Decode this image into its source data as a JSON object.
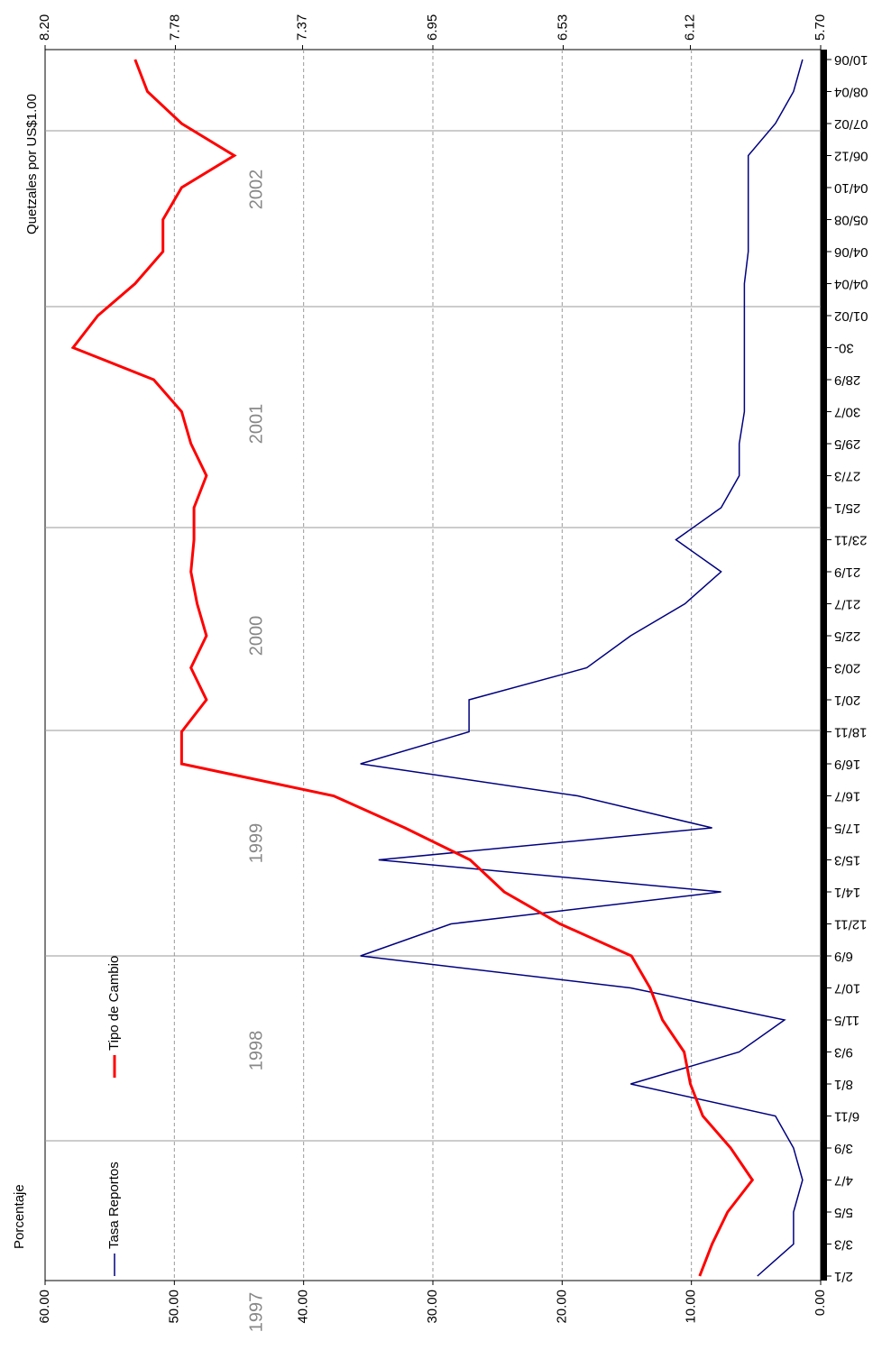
{
  "chart_data": {
    "type": "line",
    "y_label": "Porcentaje",
    "y2_label": "Quetzales por US$1.00",
    "year_labels": [
      "1997",
      "1998",
      "1999",
      "2000",
      "2001",
      "2002"
    ],
    "categories": [
      "2/1",
      "3/3",
      "5/5",
      "4/7",
      "3/9",
      "6/11",
      "8/1",
      "9/3",
      "11/5",
      "10/7",
      "6/9",
      "12/11",
      "14/1",
      "15/3",
      "17/5",
      "16/7",
      "16/9",
      "18/11",
      "20/1",
      "20/3",
      "22/5",
      "21/7",
      "21/9",
      "23/11",
      "25/1",
      "27/3",
      "29/5",
      "30/7",
      "28/9",
      "30-",
      "01/02",
      "04/04",
      "04/06",
      "05/08",
      "04/10",
      "06/12",
      "07/02",
      "08/04",
      "10/06"
    ],
    "series": [
      {
        "name": "Tasa Reportos",
        "color": "#000080",
        "values": [
          4.9,
          2.1,
          2.1,
          1.4,
          2.1,
          3.5,
          14.7,
          6.3,
          2.8,
          14.7,
          35.6,
          28.6,
          7.7,
          34.2,
          8.4,
          18.8,
          35.6,
          27.2,
          27.2,
          18.1,
          14.7,
          10.5,
          7.7,
          11.2,
          7.7,
          6.3,
          6.3,
          5.9,
          5.9,
          5.9,
          5.9,
          5.9,
          5.6,
          5.6,
          5.6,
          5.6,
          3.5,
          2.1,
          1.4
        ]
      },
      {
        "name": "Tipo de Cambio",
        "color": "#ff0000",
        "axis": "y2",
        "values": [
          6.09,
          6.05,
          6.0,
          5.92,
          5.99,
          6.08,
          6.12,
          6.14,
          6.21,
          6.25,
          6.31,
          6.54,
          6.72,
          6.83,
          7.04,
          7.27,
          7.76,
          7.76,
          7.68,
          7.73,
          7.68,
          7.71,
          7.73,
          7.72,
          7.72,
          7.68,
          7.73,
          7.76,
          7.85,
          8.11,
          8.03,
          7.91,
          7.82,
          7.82,
          7.76,
          7.59,
          7.76,
          7.87,
          7.91
        ]
      }
    ],
    "ylim": [
      0,
      60
    ],
    "yticks": [
      {
        "value": 0,
        "label": "0.00"
      },
      {
        "value": 10,
        "label": "10.00"
      },
      {
        "value": 20,
        "label": "20.00"
      },
      {
        "value": 30,
        "label": "30.00"
      },
      {
        "value": 40,
        "label": "40.00"
      },
      {
        "value": 50,
        "label": "50.00"
      },
      {
        "value": 60,
        "label": "60.00"
      }
    ],
    "y2lim": [
      5.7,
      8.2
    ],
    "y2ticks": [
      {
        "value": 5.7,
        "label": "5.70"
      },
      6.12,
      6.53,
      6.95,
      7.37,
      7.78,
      {
        "value": 8.2,
        "label": "8.20"
      }
    ],
    "grid": true
  }
}
